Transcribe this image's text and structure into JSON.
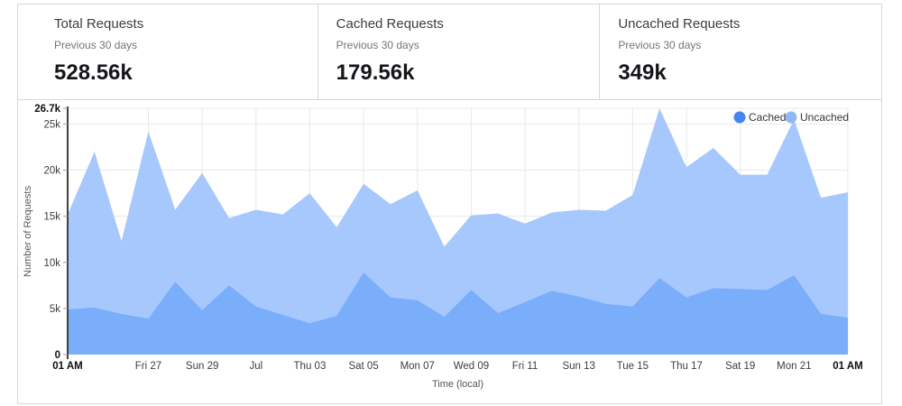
{
  "cards": [
    {
      "title": "Total Requests",
      "subtitle": "Previous 30 days",
      "value": "528.56k"
    },
    {
      "title": "Cached Requests",
      "subtitle": "Previous 30 days",
      "value": "179.56k"
    },
    {
      "title": "Uncached Requests",
      "subtitle": "Previous 30 days",
      "value": "349k"
    }
  ],
  "chart_data": {
    "type": "area",
    "stacked": true,
    "title": "",
    "xlabel": "Time (local)",
    "ylabel": "Number of Requests",
    "unit": "k requests",
    "ylim": [
      0,
      26.7
    ],
    "grid": true,
    "legend_position": "top-right",
    "x_ticks": [
      {
        "day": 0,
        "label": "01 AM",
        "bold": true
      },
      {
        "day": 3,
        "label": "Fri 27"
      },
      {
        "day": 5,
        "label": "Sun 29"
      },
      {
        "day": 7,
        "label": "Jul"
      },
      {
        "day": 9,
        "label": "Thu 03"
      },
      {
        "day": 11,
        "label": "Sat 05"
      },
      {
        "day": 13,
        "label": "Mon 07"
      },
      {
        "day": 15,
        "label": "Wed 09"
      },
      {
        "day": 17,
        "label": "Fri 11"
      },
      {
        "day": 19,
        "label": "Sun 13"
      },
      {
        "day": 21,
        "label": "Tue 15"
      },
      {
        "day": 23,
        "label": "Thu 17"
      },
      {
        "day": 25,
        "label": "Sat 19"
      },
      {
        "day": 27,
        "label": "Mon 21"
      },
      {
        "day": 29,
        "label": "01 AM",
        "bold": true
      }
    ],
    "y_ticks": [
      {
        "v": 0,
        "label": "0",
        "bold": true
      },
      {
        "v": 5,
        "label": "5k"
      },
      {
        "v": 10,
        "label": "10k"
      },
      {
        "v": 15,
        "label": "15k"
      },
      {
        "v": 20,
        "label": "20k"
      },
      {
        "v": 25,
        "label": "25k"
      },
      {
        "v": 26.7,
        "label": "26.7k",
        "bold": true
      }
    ],
    "series": [
      {
        "name": "Cached",
        "fill": "#7aaefb",
        "dot_color": "#4486ef",
        "values": [
          4.9,
          5.1,
          4.4,
          3.9,
          7.9,
          4.8,
          7.5,
          5.2,
          4.3,
          3.4,
          4.2,
          8.9,
          6.2,
          5.9,
          4.1,
          7.0,
          4.5,
          5.7,
          6.9,
          6.3,
          5.5,
          5.2,
          8.3,
          6.2,
          7.2,
          7.1,
          7.0,
          8.6,
          4.4,
          4.0
        ]
      },
      {
        "name": "Uncached",
        "fill": "#a7c8fd",
        "dot_color": "#8fb8f4",
        "values": [
          10.3,
          16.9,
          7.9,
          20.3,
          7.8,
          14.9,
          7.3,
          10.5,
          10.9,
          14.1,
          9.6,
          9.6,
          10.1,
          11.9,
          7.6,
          8.1,
          10.8,
          8.5,
          8.5,
          9.4,
          10.1,
          12.1,
          18.4,
          14.1,
          15.2,
          12.4,
          12.5,
          16.9,
          12.6,
          13.6
        ]
      }
    ],
    "colors": {
      "grid": "#e8e8e8",
      "axis_line": "#404040",
      "tick_mark": "#9a9a9a",
      "axis_label": "#3d3d3d",
      "axis_label_bold": "#0f0f0f",
      "axis_title": "#54565a",
      "legend_text": "#33363b"
    }
  }
}
